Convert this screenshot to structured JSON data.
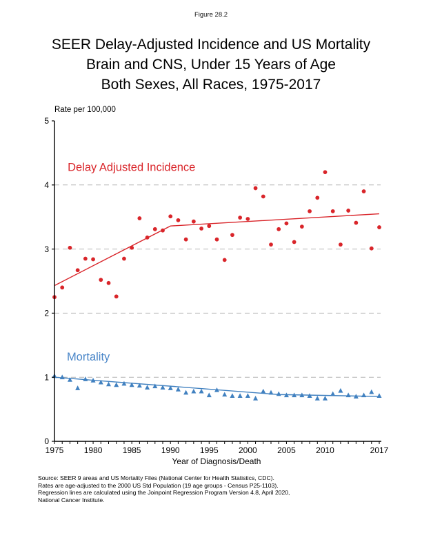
{
  "page": {
    "figure_label": "Figure 28.2",
    "title_lines": [
      "SEER Delay-Adjusted Incidence and US Mortality",
      "Brain and CNS, Under 15 Years of Age",
      "Both Sexes, All Races, 1975-2017"
    ],
    "footnotes": [
      "Source: SEER 9 areas and US Mortality Files (National Center for Health Statistics, CDC).",
      "Rates are age-adjusted to the 2000 US Std Population (19 age groups - Census P25-1103).",
      "Regression lines are calculated using the Joinpoint Regression Program Version 4.8, April 2020,",
      "National Cancer Institute."
    ]
  },
  "colors": {
    "incidence": "#d9252a",
    "mortality": "#4181c0",
    "mortality_label": "#4a86c8",
    "grid": "#b3b3b3",
    "axis": "#000000"
  },
  "chart_data": {
    "type": "scatter",
    "title": "SEER Delay-Adjusted Incidence and US Mortality, Brain and CNS, Under 15 Years of Age, Both Sexes, All Races, 1975-2017",
    "xlabel": "Year of Diagnosis/Death",
    "ylabel": "Rate per 100,000",
    "xlim": [
      1975,
      2017
    ],
    "ylim": [
      0,
      5
    ],
    "x_ticks_labeled": [
      1975,
      1980,
      1985,
      1990,
      1995,
      2000,
      2005,
      2010,
      2017
    ],
    "y_ticks": [
      0,
      1,
      2,
      3,
      4,
      5
    ],
    "gridlines_y": [
      1,
      2,
      3,
      4
    ],
    "grid_style": "dashed",
    "legend_position": "inline-annotations",
    "years": [
      1975,
      1976,
      1977,
      1978,
      1979,
      1980,
      1981,
      1982,
      1983,
      1984,
      1985,
      1986,
      1987,
      1988,
      1989,
      1990,
      1991,
      1992,
      1993,
      1994,
      1995,
      1996,
      1997,
      1998,
      1999,
      2000,
      2001,
      2002,
      2003,
      2004,
      2005,
      2006,
      2007,
      2008,
      2009,
      2010,
      2011,
      2012,
      2013,
      2014,
      2015,
      2016,
      2017
    ],
    "series": [
      {
        "name": "Delay Adjusted Incidence",
        "marker": "circle",
        "color": "#d9252a",
        "values": [
          2.25,
          2.4,
          3.02,
          2.67,
          2.85,
          2.84,
          2.52,
          2.47,
          2.26,
          2.85,
          3.02,
          3.48,
          3.18,
          3.31,
          3.29,
          3.51,
          3.45,
          3.15,
          3.43,
          3.32,
          3.36,
          3.15,
          2.83,
          3.22,
          3.49,
          3.47,
          3.95,
          3.82,
          3.07,
          3.31,
          3.4,
          3.11,
          3.35,
          3.59,
          3.8,
          4.2,
          3.59,
          3.07,
          3.6,
          3.41,
          3.9,
          3.01,
          3.34
        ]
      },
      {
        "name": "Mortality",
        "marker": "triangle",
        "color": "#4181c0",
        "values": [
          1.02,
          1.0,
          0.96,
          0.83,
          0.97,
          0.95,
          0.92,
          0.89,
          0.88,
          0.9,
          0.88,
          0.87,
          0.84,
          0.86,
          0.84,
          0.83,
          0.81,
          0.76,
          0.78,
          0.78,
          0.72,
          0.8,
          0.73,
          0.71,
          0.71,
          0.71,
          0.67,
          0.78,
          0.76,
          0.74,
          0.72,
          0.72,
          0.72,
          0.71,
          0.67,
          0.67,
          0.74,
          0.79,
          0.72,
          0.7,
          0.72,
          0.77,
          0.71
        ]
      }
    ],
    "regression_lines": [
      {
        "series": "Delay Adjusted Incidence",
        "color": "#d9252a",
        "points": [
          {
            "x": 1975,
            "y": 2.43
          },
          {
            "x": 1990,
            "y": 3.36
          },
          {
            "x": 2017,
            "y": 3.55
          }
        ]
      },
      {
        "series": "Mortality",
        "color": "#4181c0",
        "points": [
          {
            "x": 1975,
            "y": 1.0
          },
          {
            "x": 2004,
            "y": 0.73
          },
          {
            "x": 2017,
            "y": 0.7
          }
        ]
      }
    ],
    "annotations": [
      {
        "text": "Delay Adjusted Incidence",
        "x": 1976.7,
        "y": 4.22,
        "color": "#d9252a"
      },
      {
        "text": "Mortality",
        "x": 1976.6,
        "y": 1.26,
        "color": "#4a86c8"
      }
    ]
  }
}
